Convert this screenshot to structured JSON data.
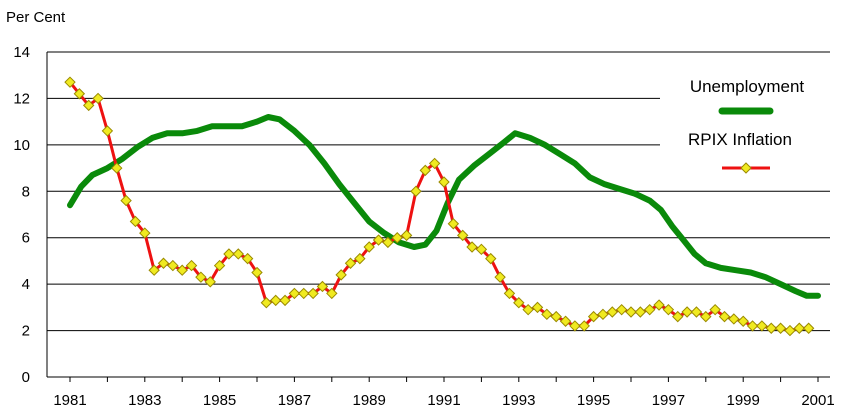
{
  "chart_data": {
    "type": "line",
    "ylabel": "Per Cent",
    "ylim": [
      0,
      14
    ],
    "yticks": [
      0,
      2,
      4,
      6,
      8,
      10,
      12,
      14
    ],
    "xlim": [
      1981,
      2001
    ],
    "xticks": [
      1981,
      1983,
      1985,
      1987,
      1989,
      1991,
      1993,
      1995,
      1997,
      1999,
      2001
    ],
    "grid": "horizontal",
    "legend_placement": "top-right",
    "series": [
      {
        "name": "Unemployment",
        "color": "#0a8a0a",
        "marker": "none",
        "points": [
          [
            1981.0,
            7.4
          ],
          [
            1981.3,
            8.2
          ],
          [
            1981.6,
            8.7
          ],
          [
            1982.0,
            9.0
          ],
          [
            1982.4,
            9.4
          ],
          [
            1982.8,
            9.9
          ],
          [
            1983.2,
            10.3
          ],
          [
            1983.6,
            10.5
          ],
          [
            1984.0,
            10.5
          ],
          [
            1984.4,
            10.6
          ],
          [
            1984.8,
            10.8
          ],
          [
            1985.2,
            10.8
          ],
          [
            1985.6,
            10.8
          ],
          [
            1986.0,
            11.0
          ],
          [
            1986.3,
            11.2
          ],
          [
            1986.6,
            11.1
          ],
          [
            1987.0,
            10.6
          ],
          [
            1987.4,
            10.0
          ],
          [
            1987.8,
            9.2
          ],
          [
            1988.2,
            8.3
          ],
          [
            1988.6,
            7.5
          ],
          [
            1989.0,
            6.7
          ],
          [
            1989.4,
            6.2
          ],
          [
            1989.8,
            5.8
          ],
          [
            1990.2,
            5.6
          ],
          [
            1990.5,
            5.7
          ],
          [
            1990.8,
            6.3
          ],
          [
            1991.1,
            7.5
          ],
          [
            1991.4,
            8.5
          ],
          [
            1991.8,
            9.1
          ],
          [
            1992.2,
            9.6
          ],
          [
            1992.6,
            10.1
          ],
          [
            1992.9,
            10.5
          ],
          [
            1993.3,
            10.3
          ],
          [
            1993.7,
            10.0
          ],
          [
            1994.1,
            9.6
          ],
          [
            1994.5,
            9.2
          ],
          [
            1994.9,
            8.6
          ],
          [
            1995.3,
            8.3
          ],
          [
            1995.7,
            8.1
          ],
          [
            1996.1,
            7.9
          ],
          [
            1996.5,
            7.6
          ],
          [
            1996.8,
            7.2
          ],
          [
            1997.1,
            6.5
          ],
          [
            1997.4,
            5.9
          ],
          [
            1997.7,
            5.3
          ],
          [
            1998.0,
            4.9
          ],
          [
            1998.4,
            4.7
          ],
          [
            1998.8,
            4.6
          ],
          [
            1999.2,
            4.5
          ],
          [
            1999.6,
            4.3
          ],
          [
            2000.0,
            4.0
          ],
          [
            2000.4,
            3.7
          ],
          [
            2000.7,
            3.5
          ],
          [
            2001.0,
            3.5
          ]
        ]
      },
      {
        "name": "RPIX Inflation",
        "color": "#ee1111",
        "marker": "diamond",
        "marker_color": "#f0ea20",
        "points": [
          [
            1981.0,
            12.7
          ],
          [
            1981.25,
            12.2
          ],
          [
            1981.5,
            11.7
          ],
          [
            1981.75,
            12.0
          ],
          [
            1982.0,
            10.6
          ],
          [
            1982.25,
            9.0
          ],
          [
            1982.5,
            7.6
          ],
          [
            1982.75,
            6.7
          ],
          [
            1983.0,
            6.2
          ],
          [
            1983.25,
            4.6
          ],
          [
            1983.5,
            4.9
          ],
          [
            1983.75,
            4.8
          ],
          [
            1984.0,
            4.6
          ],
          [
            1984.25,
            4.8
          ],
          [
            1984.5,
            4.3
          ],
          [
            1984.75,
            4.1
          ],
          [
            1985.0,
            4.8
          ],
          [
            1985.25,
            5.3
          ],
          [
            1985.5,
            5.3
          ],
          [
            1985.75,
            5.1
          ],
          [
            1986.0,
            4.5
          ],
          [
            1986.25,
            3.2
          ],
          [
            1986.5,
            3.3
          ],
          [
            1986.75,
            3.3
          ],
          [
            1987.0,
            3.6
          ],
          [
            1987.25,
            3.6
          ],
          [
            1987.5,
            3.6
          ],
          [
            1987.75,
            3.9
          ],
          [
            1988.0,
            3.6
          ],
          [
            1988.25,
            4.4
          ],
          [
            1988.5,
            4.9
          ],
          [
            1988.75,
            5.1
          ],
          [
            1989.0,
            5.6
          ],
          [
            1989.25,
            5.9
          ],
          [
            1989.5,
            5.8
          ],
          [
            1989.75,
            6.0
          ],
          [
            1990.0,
            6.1
          ],
          [
            1990.25,
            8.0
          ],
          [
            1990.5,
            8.9
          ],
          [
            1990.75,
            9.2
          ],
          [
            1991.0,
            8.4
          ],
          [
            1991.25,
            6.6
          ],
          [
            1991.5,
            6.1
          ],
          [
            1991.75,
            5.6
          ],
          [
            1992.0,
            5.5
          ],
          [
            1992.25,
            5.1
          ],
          [
            1992.5,
            4.3
          ],
          [
            1992.75,
            3.6
          ],
          [
            1993.0,
            3.2
          ],
          [
            1993.25,
            2.9
          ],
          [
            1993.5,
            3.0
          ],
          [
            1993.75,
            2.7
          ],
          [
            1994.0,
            2.6
          ],
          [
            1994.25,
            2.4
          ],
          [
            1994.5,
            2.2
          ],
          [
            1994.75,
            2.2
          ],
          [
            1995.0,
            2.6
          ],
          [
            1995.25,
            2.7
          ],
          [
            1995.5,
            2.8
          ],
          [
            1995.75,
            2.9
          ],
          [
            1996.0,
            2.8
          ],
          [
            1996.25,
            2.8
          ],
          [
            1996.5,
            2.9
          ],
          [
            1996.75,
            3.1
          ],
          [
            1997.0,
            2.9
          ],
          [
            1997.25,
            2.6
          ],
          [
            1997.5,
            2.8
          ],
          [
            1997.75,
            2.8
          ],
          [
            1998.0,
            2.6
          ],
          [
            1998.25,
            2.9
          ],
          [
            1998.5,
            2.6
          ],
          [
            1998.75,
            2.5
          ],
          [
            1999.0,
            2.4
          ],
          [
            1999.25,
            2.2
          ],
          [
            1999.5,
            2.2
          ],
          [
            1999.75,
            2.1
          ],
          [
            2000.0,
            2.1
          ],
          [
            2000.25,
            2.0
          ],
          [
            2000.5,
            2.1
          ],
          [
            2000.75,
            2.1
          ]
        ]
      }
    ]
  }
}
